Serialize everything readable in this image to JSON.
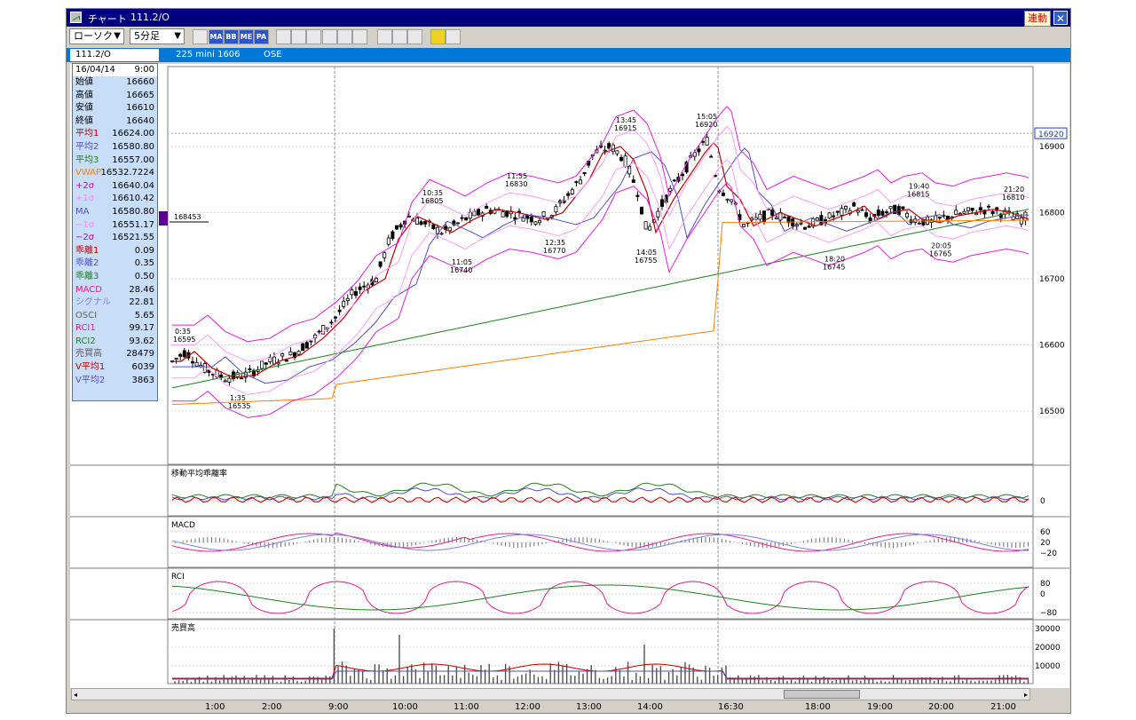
{
  "window": {
    "title": "チャート",
    "code": "111.2/O",
    "link_button": "連動",
    "close_glyph": "✕"
  },
  "toolbar": {
    "chart_type": "ローソク",
    "interval": "5分足",
    "tool_buttons": [
      {
        "icon": "zoom-chart-icon",
        "label": ""
      },
      {
        "icon": "ma-icon",
        "label": "MA"
      },
      {
        "icon": "bollinger-icon",
        "label": "BB"
      },
      {
        "icon": "mae-icon",
        "label": "ME"
      },
      {
        "icon": "pa-icon",
        "label": "PA"
      },
      {
        "icon": "line-chart-icon",
        "label": ""
      },
      {
        "icon": "candle-chart-icon",
        "label": ""
      },
      {
        "icon": "point-figure-icon",
        "label": ""
      },
      {
        "icon": "magnifier-icon",
        "label": ""
      },
      {
        "icon": "indicator-icon",
        "label": ""
      },
      {
        "icon": "settings-icon",
        "label": ""
      },
      {
        "icon": "pen-icon",
        "label": ""
      },
      {
        "icon": "cursor-icon",
        "label": ""
      },
      {
        "icon": "eraser-icon",
        "label": ""
      },
      {
        "icon": "print-icon",
        "label": ""
      },
      {
        "icon": "fibonacci-icon",
        "label": ""
      }
    ]
  },
  "infobar": {
    "code": "111.2/O",
    "name": "225 mini 1606",
    "exchange": "OSE"
  },
  "data_panel": {
    "date": "16/04/14",
    "time": "9:00",
    "rows": [
      {
        "label": "始値",
        "value": "16660",
        "color": "#000000"
      },
      {
        "label": "高値",
        "value": "16665",
        "color": "#000000"
      },
      {
        "label": "安値",
        "value": "16610",
        "color": "#000000"
      },
      {
        "label": "終値",
        "value": "16640",
        "color": "#000000"
      },
      {
        "label": "平均1",
        "value": "16624.00",
        "color": "#c00000"
      },
      {
        "label": "平均2",
        "value": "16580.80",
        "color": "#5050c0"
      },
      {
        "label": "平均3",
        "value": "16557.00",
        "color": "#208020"
      },
      {
        "label": "VWAP",
        "value": "16532.7224",
        "color": "#ff8000"
      },
      {
        "label": "+2σ",
        "value": "16640.04",
        "color": "#c000c0"
      },
      {
        "label": "+1σ",
        "value": "16610.42",
        "color": "#ff80ff"
      },
      {
        "label": "MA",
        "value": "16580.80",
        "color": "#5050c0"
      },
      {
        "label": "−1σ",
        "value": "16551.17",
        "color": "#ff80ff"
      },
      {
        "label": "−2σ",
        "value": "16521.55",
        "color": "#c000c0"
      },
      {
        "label": "乖離1",
        "value": "0.09",
        "color": "#c00000"
      },
      {
        "label": "乖離2",
        "value": "0.35",
        "color": "#5050c0"
      },
      {
        "label": "乖離3",
        "value": "0.50",
        "color": "#208020"
      },
      {
        "label": "MACD",
        "value": "28.46",
        "color": "#e0208e"
      },
      {
        "label": "シグナル",
        "value": "22.81",
        "color": "#8080e0"
      },
      {
        "label": "OSCI",
        "value": "5.65",
        "color": "#606060"
      },
      {
        "label": "RCI1",
        "value": "99.17",
        "color": "#e0208e"
      },
      {
        "label": "RCI2",
        "value": "93.62",
        "color": "#208020"
      },
      {
        "label": "売買高",
        "value": "28479",
        "color": "#606060"
      },
      {
        "label": "V平均1",
        "value": "6039",
        "color": "#c00000"
      },
      {
        "label": "V平均2",
        "value": "3863",
        "color": "#5050c0"
      }
    ]
  },
  "price_axis": {
    "ticks": [
      "16900",
      "16800",
      "16700",
      "16600",
      "16500"
    ],
    "current": "16920"
  },
  "reference_line_label": "168453",
  "annotations": [
    {
      "time": "0:35",
      "price": "16595"
    },
    {
      "time": "1:35",
      "price": "16535"
    },
    {
      "time": "10:35",
      "price": "16805"
    },
    {
      "time": "11:05",
      "price": "16740"
    },
    {
      "time": "11:55",
      "price": "16830"
    },
    {
      "time": "12:35",
      "price": "16770"
    },
    {
      "time": "13:45",
      "price": "16915"
    },
    {
      "time": "14:05",
      "price": "16755"
    },
    {
      "time": "15:05",
      "price": "16920"
    },
    {
      "time": "18:20",
      "price": "16745"
    },
    {
      "time": "19:40",
      "price": "16815"
    },
    {
      "time": "20:05",
      "price": "16765"
    },
    {
      "time": "21:20",
      "price": "16810"
    }
  ],
  "subpanels": {
    "kairi": {
      "title": "移動平均乖離率",
      "ticks": [
        "0"
      ]
    },
    "macd": {
      "title": "MACD",
      "ticks": [
        "60",
        "20",
        "−20"
      ]
    },
    "rci": {
      "title": "RCI",
      "ticks": [
        "80",
        "0",
        "−80"
      ]
    },
    "volume": {
      "title": "売買高",
      "ticks": [
        "30000",
        "20000",
        "10000"
      ]
    }
  },
  "time_axis": [
    "1:00",
    "2:00",
    "9:00",
    "10:00",
    "11:00",
    "12:00",
    "13:00",
    "14:00",
    "16:30",
    "18:00",
    "19:00",
    "20:00",
    "21:00"
  ],
  "scroll": {
    "left": "◂",
    "right": "▸"
  },
  "colors": {
    "title_bar": "#000080",
    "info_bar": "#0078d7",
    "data_panel": "#c8ddf8",
    "ma1": "#c00000",
    "ma2": "#5050c0",
    "ma3": "#208020",
    "vwap": "#ff8000",
    "band2": "#e020e0",
    "band1": "#ff9cff"
  }
}
